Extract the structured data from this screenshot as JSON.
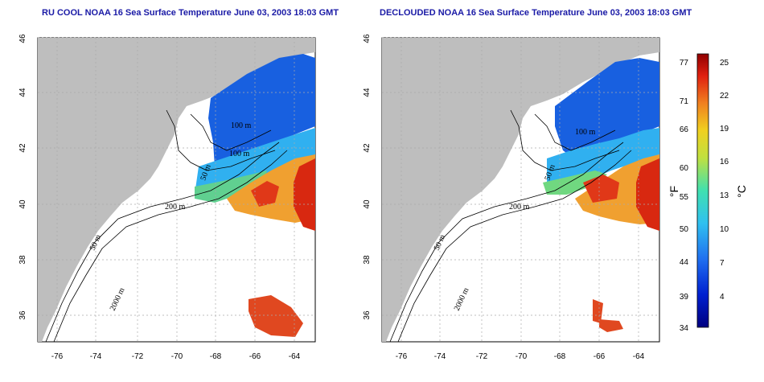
{
  "panels": [
    {
      "id": "left",
      "title": "RU COOL NOAA 16 Sea Surface Temperature June 03, 2003 18:03 GMT",
      "contour_labels": [
        "200 m",
        "100 m",
        "100 m",
        "50 m",
        "50 m",
        "2000 m"
      ]
    },
    {
      "id": "right",
      "title": "DECLOUDED NOAA 16 Sea Surface Temperature June 03, 2003 18:03 GMT",
      "contour_labels": [
        "200 m",
        "100 m",
        "50 m",
        "50 m",
        "2000 m"
      ]
    }
  ],
  "axes": {
    "x_ticks": [
      "-76",
      "-74",
      "-72",
      "-70",
      "-68",
      "-66",
      "-64"
    ],
    "y_ticks": [
      "36",
      "38",
      "40",
      "42",
      "44",
      "46"
    ]
  },
  "colorbar": {
    "fahrenheit_ticks": [
      "77",
      "71",
      "66",
      "60",
      "55",
      "50",
      "44",
      "39",
      "34"
    ],
    "celsius_ticks": [
      "25",
      "22",
      "19",
      "16",
      "13",
      "10",
      "7",
      "4"
    ],
    "unit_f": "°F",
    "unit_c": "°C"
  },
  "colors": {
    "land": "#bebebe",
    "cold": "#1040d0",
    "cool": "#20a0f0",
    "warm": "#f0a020",
    "hot": "#e03010",
    "title": "#1a1aa6"
  }
}
